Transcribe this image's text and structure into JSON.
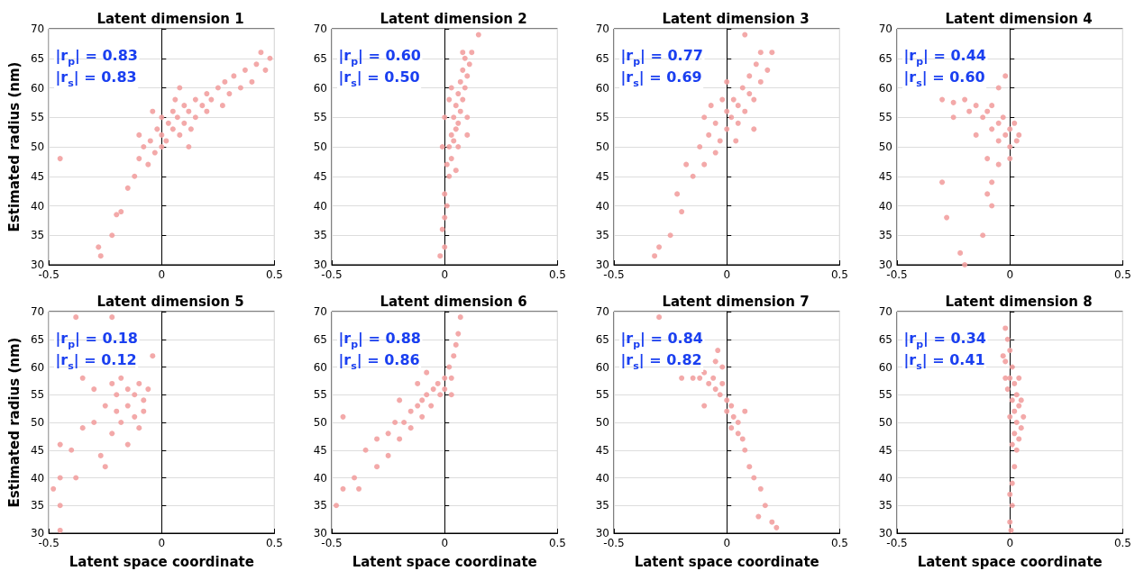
{
  "chart_data": [
    {
      "type": "scatter",
      "title": "Latent dimension 1",
      "ylabel": "Estimated radius (nm)",
      "xlim": [
        -0.5,
        0.5
      ],
      "xticks": [
        -0.5,
        0,
        0.5
      ],
      "ylim": [
        30,
        70
      ],
      "yticks": [
        30,
        35,
        40,
        45,
        50,
        55,
        60,
        65,
        70
      ],
      "grid": true,
      "marker": "circle",
      "annotations": [
        "|r$_{p}$| = 0.83",
        "|r$_{s}$| = 0.83"
      ],
      "series": [
        {
          "color": "#f2a0a0",
          "x": [
            -0.45,
            -0.28,
            -0.27,
            -0.22,
            -0.2,
            -0.18,
            -0.15,
            -0.12,
            -0.1,
            -0.08,
            -0.06,
            -0.05,
            -0.03,
            -0.02,
            0,
            0,
            0.02,
            0.03,
            0.05,
            0.05,
            0.07,
            0.08,
            0.1,
            0.1,
            0.12,
            0.13,
            0.15,
            0.15,
            0.18,
            0.2,
            0.2,
            0.22,
            0.25,
            0.27,
            0.28,
            0.3,
            0.32,
            0.35,
            0.37,
            0.4,
            0.42,
            0.44,
            0.46,
            0.48,
            -0.1,
            -0.04,
            0,
            0.06,
            0.12,
            0.08
          ],
          "values": [
            48,
            33,
            31.5,
            35,
            38.5,
            39,
            43,
            45,
            48,
            50,
            47,
            51,
            49,
            53,
            52,
            55,
            51,
            54,
            53,
            56,
            55,
            52,
            54,
            57,
            56,
            53,
            55,
            58,
            57,
            56,
            59,
            58,
            60,
            57,
            61,
            59,
            62,
            60,
            63,
            61,
            64,
            66,
            63,
            65,
            52,
            56,
            50,
            58,
            50,
            60
          ]
        }
      ]
    },
    {
      "type": "scatter",
      "title": "Latent dimension 2",
      "xlim": [
        -0.5,
        0.5
      ],
      "xticks": [
        -0.5,
        0,
        0.5
      ],
      "ylim": [
        30,
        70
      ],
      "yticks": [
        30,
        35,
        40,
        45,
        50,
        55,
        60,
        65,
        70
      ],
      "grid": true,
      "marker": "circle",
      "annotations": [
        "|r$_{p}$| = 0.60",
        "|r$_{s}$| = 0.50"
      ],
      "series": [
        {
          "color": "#f2a0a0",
          "x": [
            -0.02,
            0,
            -0.01,
            0,
            0.01,
            0,
            0.02,
            0.01,
            0.03,
            0.02,
            0.04,
            0.03,
            0.05,
            0.06,
            0.04,
            0.07,
            0.05,
            0.08,
            0.06,
            0.09,
            0.07,
            0.1,
            0.08,
            0.11,
            0.09,
            0.12,
            0.15,
            0,
            0.02,
            0.1,
            0.06,
            0.1,
            0.03,
            -0.01,
            0.05,
            0.08
          ],
          "values": [
            31.5,
            33,
            36,
            38,
            40,
            42,
            45,
            47,
            48,
            50,
            51,
            52,
            53,
            54,
            55,
            56,
            57,
            58,
            59,
            60,
            61,
            62,
            63,
            64,
            65,
            66,
            69,
            55,
            58,
            55,
            50,
            52,
            60,
            50,
            46,
            66
          ]
        }
      ]
    },
    {
      "type": "scatter",
      "title": "Latent dimension 3",
      "xlim": [
        -0.5,
        0.5
      ],
      "xticks": [
        -0.5,
        0,
        0.5
      ],
      "ylim": [
        30,
        70
      ],
      "yticks": [
        30,
        35,
        40,
        45,
        50,
        55,
        60,
        65,
        70
      ],
      "grid": true,
      "marker": "circle",
      "annotations": [
        "|r$_{p}$| = 0.77",
        "|r$_{s}$| = 0.69"
      ],
      "series": [
        {
          "color": "#f2a0a0",
          "x": [
            -0.3,
            -0.32,
            -0.25,
            -0.2,
            -0.22,
            -0.15,
            -0.18,
            -0.1,
            -0.12,
            -0.08,
            -0.05,
            -0.05,
            -0.03,
            0,
            0,
            0.02,
            0.03,
            0.05,
            0.05,
            0.07,
            0.08,
            0.1,
            0.1,
            0.12,
            0.13,
            0.15,
            0.15,
            0.18,
            0.2,
            0.08,
            -0.02,
            0.04,
            -0.1,
            0,
            0.12,
            -0.07
          ],
          "values": [
            33,
            31.5,
            35,
            39,
            42,
            45,
            47,
            47,
            50,
            52,
            49,
            54,
            51,
            53,
            56,
            55,
            58,
            54,
            57,
            60,
            56,
            59,
            62,
            58,
            64,
            61,
            66,
            63,
            66,
            69,
            58,
            51,
            55,
            61,
            53,
            57
          ]
        }
      ]
    },
    {
      "type": "scatter",
      "title": "Latent dimension 4",
      "xlim": [
        -0.5,
        0.5
      ],
      "xticks": [
        -0.5,
        0,
        0.5
      ],
      "ylim": [
        30,
        70
      ],
      "yticks": [
        30,
        35,
        40,
        45,
        50,
        55,
        60,
        65,
        70
      ],
      "grid": true,
      "marker": "circle",
      "annotations": [
        "|r$_{p}$| = 0.44",
        "|r$_{s}$| = 0.60"
      ],
      "series": [
        {
          "color": "#f2a0a0",
          "x": [
            -0.2,
            -0.18,
            -0.15,
            -0.12,
            -0.1,
            -0.08,
            -0.08,
            -0.05,
            -0.05,
            -0.03,
            -0.02,
            0,
            0,
            0.02,
            0.03,
            0.04,
            -0.15,
            -0.1,
            -0.05,
            -0.08,
            -0.3,
            -0.28,
            -0.2,
            -0.12,
            -0.08,
            -0.22,
            -0.1,
            0,
            -0.25,
            -0.3,
            -0.25,
            -0.05,
            -0.02
          ],
          "values": [
            58,
            56,
            57,
            55,
            56,
            53,
            57,
            54,
            51,
            55,
            52,
            53,
            50,
            54,
            51,
            52,
            52,
            48,
            47,
            44,
            44,
            38,
            30,
            35,
            40,
            32,
            42,
            48,
            55,
            58,
            57.5,
            60,
            62
          ]
        }
      ]
    },
    {
      "type": "scatter",
      "title": "Latent dimension 5",
      "xlabel": "Latent space coordinate",
      "ylabel": "Estimated radius (nm)",
      "xlim": [
        -0.5,
        0.5
      ],
      "xticks": [
        -0.5,
        0,
        0.5
      ],
      "ylim": [
        30,
        70
      ],
      "yticks": [
        30,
        35,
        40,
        45,
        50,
        55,
        60,
        65,
        70
      ],
      "grid": true,
      "marker": "circle",
      "annotations": [
        "|r$_{p}$| = 0.18",
        "|r$_{s}$| = 0.12"
      ],
      "series": [
        {
          "color": "#f2a0a0",
          "x": [
            -0.45,
            -0.48,
            -0.45,
            -0.4,
            -0.38,
            -0.35,
            -0.35,
            -0.38,
            -0.3,
            -0.27,
            -0.25,
            -0.22,
            -0.22,
            -0.2,
            -0.2,
            -0.18,
            -0.18,
            -0.15,
            -0.15,
            -0.12,
            -0.12,
            -0.1,
            -0.1,
            -0.08,
            -0.08,
            -0.06,
            -0.15,
            -0.25,
            -0.45,
            -0.3,
            -0.45,
            -0.22,
            -0.04
          ],
          "values": [
            35,
            38,
            40,
            45,
            40,
            49,
            58,
            69,
            50,
            44,
            53,
            57,
            48,
            55,
            52,
            58,
            50,
            56,
            53,
            51,
            55,
            57,
            49,
            54,
            52,
            56,
            46,
            42,
            46,
            56,
            30.5,
            69,
            62
          ]
        }
      ]
    },
    {
      "type": "scatter",
      "title": "Latent dimension 6",
      "xlabel": "Latent space coordinate",
      "xlim": [
        -0.5,
        0.5
      ],
      "xticks": [
        -0.5,
        0,
        0.5
      ],
      "ylim": [
        30,
        70
      ],
      "yticks": [
        30,
        35,
        40,
        45,
        50,
        55,
        60,
        65,
        70
      ],
      "grid": true,
      "marker": "circle",
      "annotations": [
        "|r$_{p}$| = 0.88",
        "|r$_{s}$| = 0.86"
      ],
      "series": [
        {
          "color": "#f2a0a0",
          "x": [
            -0.48,
            -0.45,
            -0.4,
            -0.38,
            -0.35,
            -0.3,
            -0.3,
            -0.25,
            -0.25,
            -0.22,
            -0.2,
            -0.18,
            -0.15,
            -0.15,
            -0.12,
            -0.1,
            -0.1,
            -0.08,
            -0.06,
            -0.05,
            -0.03,
            -0.02,
            0,
            0,
            0.02,
            0.03,
            0.04,
            0.05,
            0.06,
            0.07,
            -0.45,
            -0.2,
            -0.12,
            0.03,
            -0.08
          ],
          "values": [
            35,
            38,
            40,
            38,
            45,
            42,
            47,
            48,
            44,
            50,
            47,
            50,
            52,
            49,
            53,
            54,
            51,
            55,
            53,
            56,
            57,
            55,
            58,
            56,
            60,
            58,
            62,
            64,
            66,
            69,
            51,
            54,
            57,
            55,
            59
          ]
        }
      ]
    },
    {
      "type": "scatter",
      "title": "Latent dimension 7",
      "xlabel": "Latent space coordinate",
      "xlim": [
        -0.5,
        0.5
      ],
      "xticks": [
        -0.5,
        0,
        0.5
      ],
      "ylim": [
        30,
        70
      ],
      "yticks": [
        30,
        35,
        40,
        45,
        50,
        55,
        60,
        65,
        70
      ],
      "grid": true,
      "marker": "circle",
      "annotations": [
        "|r$_{p}$| = 0.84",
        "|r$_{s}$| = 0.82"
      ],
      "series": [
        {
          "color": "#f2a0a0",
          "x": [
            -0.3,
            -0.12,
            -0.1,
            -0.08,
            -0.06,
            -0.05,
            -0.03,
            -0.02,
            0,
            0,
            0.02,
            0.03,
            0.05,
            0.05,
            0.07,
            0.08,
            0.1,
            0.12,
            0.15,
            0.17,
            0.2,
            0.22,
            0.14,
            -0.2,
            -0.1,
            0.08,
            -0.05,
            0.02,
            -0.04,
            -0.02,
            -0.15
          ],
          "values": [
            69,
            58,
            59,
            57,
            58,
            56,
            55,
            57,
            54,
            52,
            53,
            51,
            50,
            48,
            47,
            45,
            42,
            40,
            38,
            35,
            32,
            31,
            33,
            58,
            53,
            52,
            61,
            49,
            63,
            60,
            58
          ]
        }
      ]
    },
    {
      "type": "scatter",
      "title": "Latent dimension 8",
      "xlabel": "Latent space coordinate",
      "xlim": [
        -0.5,
        0.5
      ],
      "xticks": [
        -0.5,
        0,
        0.5
      ],
      "ylim": [
        30,
        70
      ],
      "yticks": [
        30,
        35,
        40,
        45,
        50,
        55,
        60,
        65,
        70
      ],
      "grid": true,
      "marker": "circle",
      "annotations": [
        "|r$_{p}$| = 0.34",
        "|r$_{s}$| = 0.41"
      ],
      "series": [
        {
          "color": "#f2a0a0",
          "x": [
            -0.02,
            -0.01,
            0,
            -0.02,
            0.01,
            0,
            0.02,
            -0.01,
            0.03,
            0.01,
            0.04,
            0.02,
            0,
            0.03,
            0.05,
            0.02,
            0.04,
            0.01,
            0.03,
            0.02,
            0.01,
            0,
            0.01,
            0,
            0.005,
            -0.03,
            0.05,
            0.06,
            -0.02,
            0.04
          ],
          "values": [
            67,
            65,
            63,
            61,
            60,
            58,
            57,
            56,
            55,
            54,
            53,
            52,
            51,
            50,
            49,
            48,
            47,
            46,
            45,
            42,
            39,
            37,
            35,
            32,
            30.5,
            62,
            54,
            51,
            58,
            58
          ]
        }
      ]
    }
  ]
}
